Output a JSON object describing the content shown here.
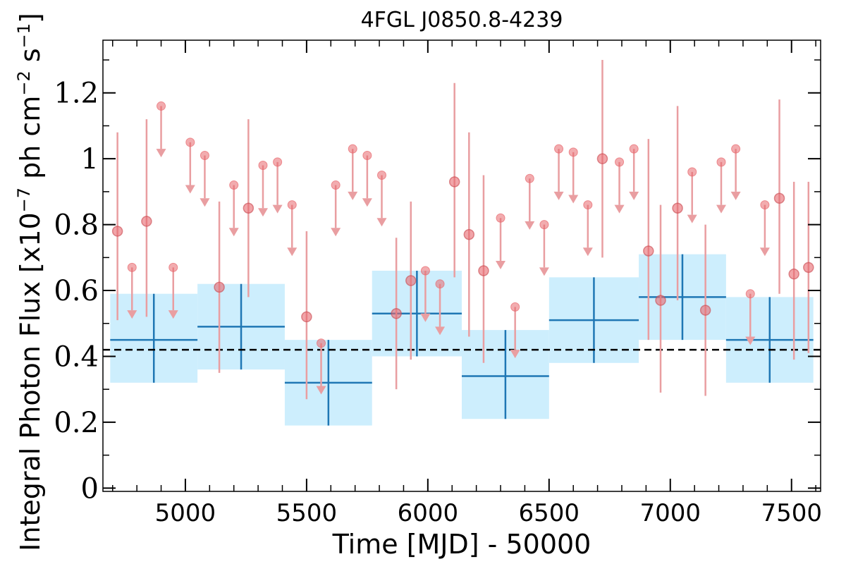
{
  "chart_data": {
    "type": "scatter",
    "title": "4FGL J0850.8-4239",
    "xlabel": "Time [MJD] - 50000",
    "ylabel_main": "Integral Photon Flux [x10",
    "ylabel_exp1": "−7",
    "ylabel_mid": " ph cm",
    "ylabel_exp2": "−2",
    "ylabel_s": " s",
    "ylabel_exp3": "−1",
    "ylabel_end": "]",
    "xlim": [
      4660,
      7620
    ],
    "ylim": [
      -0.01,
      1.36
    ],
    "xticks": [
      5000,
      5500,
      6000,
      6500,
      7000,
      7500
    ],
    "xtick_labels": [
      "5000",
      "5500",
      "6000",
      "6500",
      "7000",
      "7500"
    ],
    "yticks": [
      0,
      0.2,
      0.4,
      0.6,
      0.8,
      1.0,
      1.2
    ],
    "ytick_labels": [
      "0",
      "0.2",
      "0.4",
      "0.6",
      "0.8",
      "1",
      "1.2"
    ],
    "grid": false,
    "colors": {
      "fine_points": "#e8686e",
      "fine_bars": "#e99ea1",
      "coarse_fill": "#cdeefd",
      "coarse_line": "#1f77b4",
      "mean_line": "#000000"
    },
    "mean_flux": 0.42,
    "coarse_bins": [
      {
        "x_start": 4690,
        "x_end": 5050,
        "x_center": 4870,
        "y": 0.45,
        "y_low": 0.32,
        "y_high": 0.59
      },
      {
        "x_start": 5050,
        "x_end": 5410,
        "x_center": 5230,
        "y": 0.49,
        "y_low": 0.36,
        "y_high": 0.62
      },
      {
        "x_start": 5410,
        "x_end": 5770,
        "x_center": 5590,
        "y": 0.32,
        "y_low": 0.19,
        "y_high": 0.45
      },
      {
        "x_start": 5770,
        "x_end": 6140,
        "x_center": 5955,
        "y": 0.53,
        "y_low": 0.4,
        "y_high": 0.66
      },
      {
        "x_start": 6140,
        "x_end": 6500,
        "x_center": 6320,
        "y": 0.34,
        "y_low": 0.21,
        "y_high": 0.48
      },
      {
        "x_start": 6500,
        "x_end": 6870,
        "x_center": 6685,
        "y": 0.51,
        "y_low": 0.38,
        "y_high": 0.64
      },
      {
        "x_start": 6870,
        "x_end": 7230,
        "x_center": 7050,
        "y": 0.58,
        "y_low": 0.45,
        "y_high": 0.71
      },
      {
        "x_start": 7230,
        "x_end": 7590,
        "x_center": 7410,
        "y": 0.45,
        "y_low": 0.32,
        "y_high": 0.58
      }
    ],
    "fine_detections": [
      {
        "x": 4720,
        "y": 0.78,
        "y_low": 0.51,
        "y_high": 1.08
      },
      {
        "x": 4840,
        "y": 0.81,
        "y_low": 0.52,
        "y_high": 1.12
      },
      {
        "x": 5140,
        "y": 0.61,
        "y_low": 0.35,
        "y_high": 0.87
      },
      {
        "x": 5260,
        "y": 0.85,
        "y_low": 0.58,
        "y_high": 1.12
      },
      {
        "x": 5500,
        "y": 0.52,
        "y_low": 0.27,
        "y_high": 0.78
      },
      {
        "x": 5870,
        "y": 0.53,
        "y_low": 0.3,
        "y_high": 0.76
      },
      {
        "x": 5930,
        "y": 0.63,
        "y_low": 0.39,
        "y_high": 0.87
      },
      {
        "x": 6110,
        "y": 0.93,
        "y_low": 0.64,
        "y_high": 1.23
      },
      {
        "x": 6170,
        "y": 0.77,
        "y_low": 0.46,
        "y_high": 1.08
      },
      {
        "x": 6230,
        "y": 0.66,
        "y_low": 0.38,
        "y_high": 0.95
      },
      {
        "x": 6720,
        "y": 1.0,
        "y_low": 0.7,
        "y_high": 1.3
      },
      {
        "x": 6910,
        "y": 0.72,
        "y_low": 0.45,
        "y_high": 1.06
      },
      {
        "x": 6960,
        "y": 0.57,
        "y_low": 0.29,
        "y_high": 0.86
      },
      {
        "x": 7030,
        "y": 0.85,
        "y_low": 0.57,
        "y_high": 1.16
      },
      {
        "x": 7145,
        "y": 0.54,
        "y_low": 0.28,
        "y_high": 0.8
      },
      {
        "x": 7450,
        "y": 0.88,
        "y_low": 0.59,
        "y_high": 1.18
      },
      {
        "x": 7510,
        "y": 0.65,
        "y_low": 0.39,
        "y_high": 0.93
      },
      {
        "x": 7570,
        "y": 0.67,
        "y_low": 0.41,
        "y_high": 0.93
      }
    ],
    "fine_upper_limits": [
      {
        "x": 4780,
        "y": 0.67
      },
      {
        "x": 4900,
        "y": 1.16
      },
      {
        "x": 5020,
        "y": 1.05
      },
      {
        "x": 5080,
        "y": 1.01
      },
      {
        "x": 4950,
        "y": 0.67
      },
      {
        "x": 5200,
        "y": 0.92
      },
      {
        "x": 5320,
        "y": 0.98
      },
      {
        "x": 5380,
        "y": 0.99
      },
      {
        "x": 5440,
        "y": 0.86
      },
      {
        "x": 5560,
        "y": 0.44
      },
      {
        "x": 5620,
        "y": 0.92
      },
      {
        "x": 5690,
        "y": 1.03
      },
      {
        "x": 5750,
        "y": 1.01
      },
      {
        "x": 5810,
        "y": 0.95
      },
      {
        "x": 5990,
        "y": 0.66
      },
      {
        "x": 6050,
        "y": 0.62
      },
      {
        "x": 6300,
        "y": 0.82
      },
      {
        "x": 6360,
        "y": 0.55
      },
      {
        "x": 6420,
        "y": 0.94
      },
      {
        "x": 6480,
        "y": 0.8
      },
      {
        "x": 6540,
        "y": 1.03
      },
      {
        "x": 6600,
        "y": 1.02
      },
      {
        "x": 6660,
        "y": 0.86
      },
      {
        "x": 6790,
        "y": 0.99
      },
      {
        "x": 6850,
        "y": 1.03
      },
      {
        "x": 7090,
        "y": 0.96
      },
      {
        "x": 7210,
        "y": 0.99
      },
      {
        "x": 7270,
        "y": 1.03
      },
      {
        "x": 7330,
        "y": 0.59
      },
      {
        "x": 7390,
        "y": 0.86
      }
    ]
  }
}
